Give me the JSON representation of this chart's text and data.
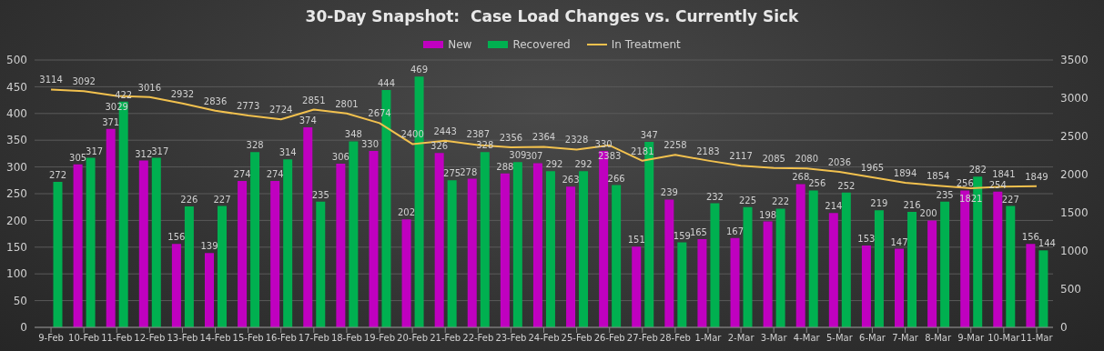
{
  "chart_data": {
    "type": "bar",
    "title": "30-Day Snapshot:  Case Load Changes vs. Currently Sick",
    "categories": [
      "9-Feb",
      "10-Feb",
      "11-Feb",
      "12-Feb",
      "13-Feb",
      "14-Feb",
      "15-Feb",
      "16-Feb",
      "17-Feb",
      "18-Feb",
      "19-Feb",
      "20-Feb",
      "21-Feb",
      "22-Feb",
      "23-Feb",
      "24-Feb",
      "25-Feb",
      "26-Feb",
      "27-Feb",
      "28-Feb",
      "1-Mar",
      "2-Mar",
      "3-Mar",
      "4-Mar",
      "5-Mar",
      "6-Mar",
      "7-Mar",
      "8-Mar",
      "9-Mar",
      "10-Mar",
      "11-Mar"
    ],
    "series": [
      {
        "name": "New",
        "color": "#c000c0",
        "values": [
          null,
          305,
          371,
          312,
          156,
          139,
          274,
          274,
          374,
          306,
          330,
          202,
          326,
          278,
          288,
          307,
          263,
          330,
          151,
          239,
          165,
          167,
          198,
          268,
          214,
          153,
          147,
          200,
          256,
          254,
          156
        ]
      },
      {
        "name": "Recovered",
        "color": "#00b050",
        "values": [
          272,
          317,
          422,
          317,
          226,
          227,
          328,
          314,
          235,
          348,
          444,
          469,
          275,
          328,
          309,
          292,
          292,
          266,
          347,
          159,
          232,
          225,
          222,
          256,
          252,
          219,
          216,
          235,
          282,
          227,
          144
        ]
      },
      {
        "name": "In Treatment",
        "type": "line",
        "axis": "y2",
        "color": "#f2c14e",
        "values": [
          3114,
          3092,
          3029,
          3016,
          2932,
          2836,
          2773,
          2724,
          2851,
          2801,
          2674,
          2400,
          2443,
          2387,
          2356,
          2364,
          2328,
          2383,
          2181,
          2258,
          2183,
          2117,
          2085,
          2080,
          2036,
          1965,
          1894,
          1854,
          1821,
          1841,
          1849
        ]
      }
    ],
    "ylim": [
      0,
      500
    ],
    "yticks": [
      0,
      50,
      100,
      150,
      200,
      250,
      300,
      350,
      400,
      450,
      500
    ],
    "y2lim": [
      0,
      3500
    ],
    "y2ticks": [
      0,
      500,
      1000,
      1500,
      2000,
      2500,
      3000,
      3500
    ],
    "grid": "y",
    "legend": "top",
    "data_labels": true,
    "marker": "none"
  }
}
